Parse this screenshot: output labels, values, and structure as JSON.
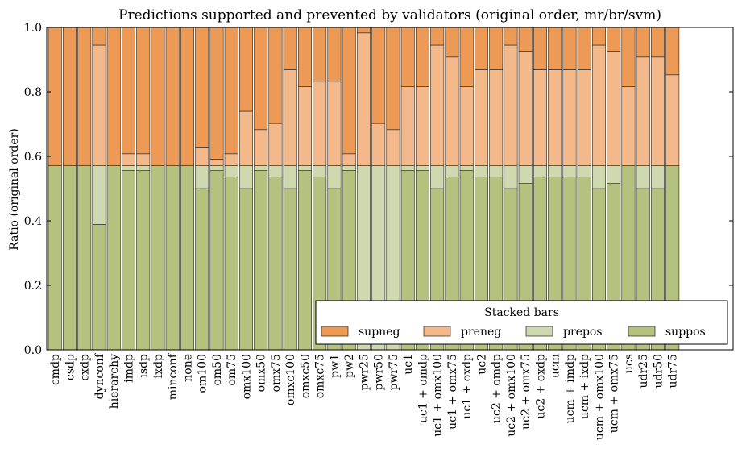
{
  "chart_data": {
    "type": "bar",
    "stacked": true,
    "title": "Predictions supported and prevented by validators (original order, mr/br/svm)",
    "xlabel": "",
    "ylabel": "Ratio (original order)",
    "ylim": [
      0,
      1
    ],
    "yticks": [
      "0.0",
      "0.2",
      "0.4",
      "0.6",
      "0.8",
      "1.0"
    ],
    "grid": false,
    "categories": [
      "cmdp",
      "csdp",
      "cxdp",
      "dynconf",
      "hierarchy",
      "imdp",
      "isdp",
      "ixdp",
      "minconf",
      "none",
      "om100",
      "om50",
      "om75",
      "omx100",
      "omx50",
      "omx75",
      "omxc100",
      "omxc50",
      "omxc75",
      "pw1",
      "pw2",
      "pwr25",
      "pwr50",
      "pwr75",
      "uc1",
      "uc1 + omdp",
      "uc1 + omx100",
      "uc1 + omx75",
      "uc1 + oxdp",
      "uc2",
      "uc2 + omdp",
      "uc2 + omx100",
      "uc2 + omx75",
      "uc2 + oxdp",
      "ucm",
      "ucm + imdp",
      "ucm + ixdp",
      "ucm + omx100",
      "ucm + omx75",
      "ucs",
      "udr25",
      "udr50",
      "udr75"
    ],
    "series": [
      {
        "name": "suppos",
        "color": "#b5c17f",
        "values": [
          0.571,
          0.571,
          0.571,
          0.389,
          0.571,
          0.556,
          0.556,
          0.571,
          0.571,
          0.571,
          0.5,
          0.556,
          0.536,
          0.5,
          0.556,
          0.536,
          0.5,
          0.556,
          0.536,
          0.5,
          0.556,
          0.0,
          0.0,
          0.0,
          0.556,
          0.556,
          0.5,
          0.536,
          0.556,
          0.536,
          0.536,
          0.5,
          0.516,
          0.536,
          0.536,
          0.536,
          0.536,
          0.5,
          0.516,
          0.571,
          0.5,
          0.5,
          0.571
        ]
      },
      {
        "name": "prepos",
        "color": "#cfd9b0",
        "values": [
          0.0,
          0.0,
          0.0,
          0.182,
          0.0,
          0.015,
          0.015,
          0.0,
          0.0,
          0.0,
          0.071,
          0.015,
          0.035,
          0.071,
          0.015,
          0.035,
          0.071,
          0.015,
          0.035,
          0.071,
          0.015,
          0.571,
          0.571,
          0.571,
          0.015,
          0.015,
          0.071,
          0.035,
          0.015,
          0.035,
          0.035,
          0.071,
          0.055,
          0.035,
          0.035,
          0.035,
          0.035,
          0.071,
          0.055,
          0.0,
          0.071,
          0.071,
          0.0
        ]
      },
      {
        "name": "preneg",
        "color": "#f3b98a",
        "values": [
          0.0,
          0.0,
          0.0,
          0.374,
          0.0,
          0.037,
          0.037,
          0.0,
          0.0,
          0.0,
          0.058,
          0.02,
          0.037,
          0.169,
          0.112,
          0.131,
          0.298,
          0.245,
          0.262,
          0.262,
          0.037,
          0.412,
          0.131,
          0.112,
          0.245,
          0.245,
          0.374,
          0.337,
          0.245,
          0.298,
          0.298,
          0.374,
          0.355,
          0.298,
          0.298,
          0.298,
          0.298,
          0.374,
          0.355,
          0.245,
          0.337,
          0.337,
          0.282
        ]
      },
      {
        "name": "supneg",
        "color": "#ec9a55",
        "values": [
          0.429,
          0.429,
          0.429,
          0.055,
          0.429,
          0.392,
          0.392,
          0.429,
          0.429,
          0.429,
          0.371,
          0.409,
          0.392,
          0.26,
          0.317,
          0.298,
          0.131,
          0.184,
          0.167,
          0.167,
          0.392,
          0.017,
          0.298,
          0.317,
          0.184,
          0.184,
          0.055,
          0.092,
          0.184,
          0.131,
          0.131,
          0.055,
          0.074,
          0.131,
          0.131,
          0.131,
          0.131,
          0.055,
          0.074,
          0.184,
          0.092,
          0.092,
          0.147
        ]
      }
    ],
    "legend": {
      "title": "Stacked bars",
      "position": "bottom-right",
      "order": [
        "supneg",
        "preneg",
        "prepos",
        "suppos"
      ]
    }
  }
}
